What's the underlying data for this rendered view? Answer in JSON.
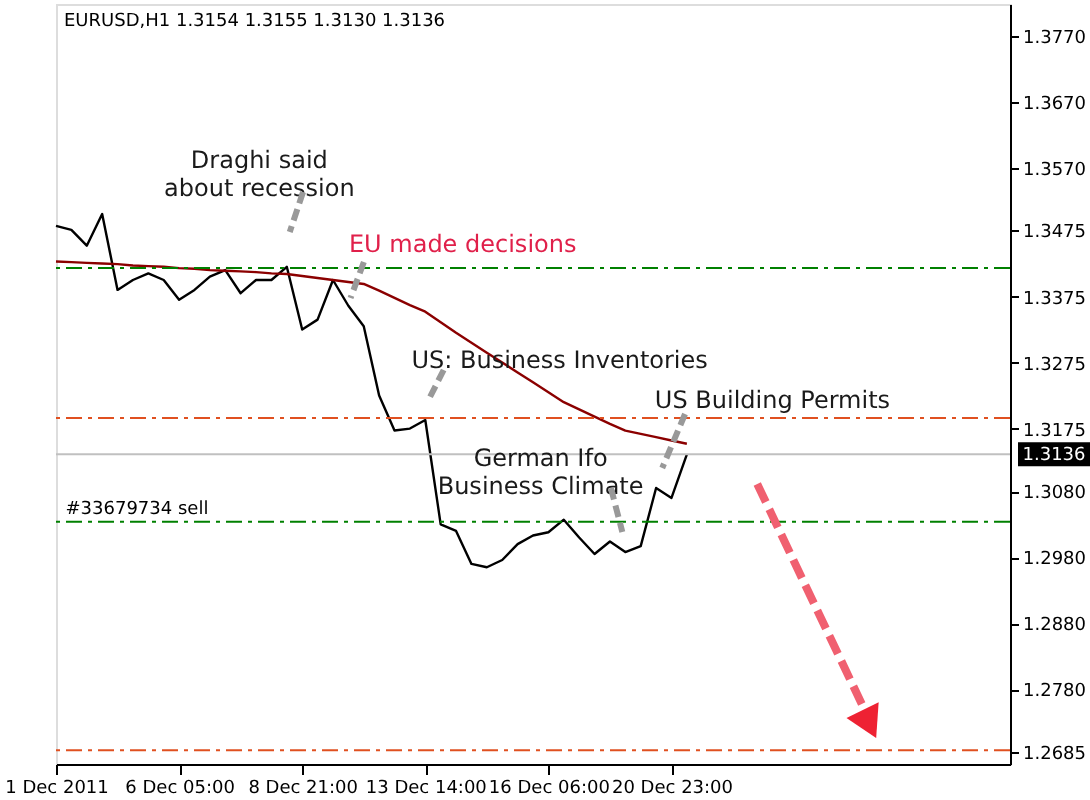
{
  "chart_data": {
    "type": "line",
    "title": "EURUSD,H1  1.3154 1.3155 1.3130 1.3136",
    "categories": [
      "1 Dec 2011",
      null,
      null,
      null,
      null,
      null,
      null,
      null,
      "6 Dec 05:00",
      null,
      null,
      null,
      null,
      null,
      null,
      null,
      "8 Dec 21:00",
      null,
      null,
      null,
      null,
      null,
      null,
      null,
      "13 Dec 14:00",
      null,
      null,
      null,
      null,
      null,
      null,
      null,
      "16 Dec 06:00",
      null,
      null,
      null,
      null,
      null,
      null,
      null,
      "20 Dec 23:00",
      null,
      null,
      null,
      null,
      null,
      null,
      null,
      null,
      null,
      null,
      null,
      null,
      null,
      null,
      null,
      null,
      null,
      null,
      null,
      null,
      null,
      null
    ],
    "ylim": [
      1.2667,
      1.3818
    ],
    "yticks": [
      {
        "value": 1.377,
        "label": "1.3770"
      },
      {
        "value": 1.367,
        "label": "1.3670"
      },
      {
        "value": 1.357,
        "label": "1.3570"
      },
      {
        "value": 1.3475,
        "label": "1.3475"
      },
      {
        "value": 1.3375,
        "label": "1.3375"
      },
      {
        "value": 1.3275,
        "label": "1.3275"
      },
      {
        "value": 1.3175,
        "label": "1.3175"
      },
      {
        "value": 1.308,
        "label": "1.3080"
      },
      {
        "value": 1.298,
        "label": "1.2980"
      },
      {
        "value": 1.288,
        "label": "1.2880"
      },
      {
        "value": 1.278,
        "label": "1.2780"
      },
      {
        "value": 1.2685,
        "label": "1.2685"
      }
    ],
    "grid": false,
    "line_style": "solid",
    "series": [
      {
        "color": "#000000",
        "values": [
          1.3482,
          1.3476,
          1.3452,
          1.35,
          1.3385,
          1.34,
          1.341,
          1.34,
          1.337,
          1.3385,
          1.3405,
          1.3415,
          1.338,
          1.34,
          1.34,
          1.342,
          1.3325,
          1.334,
          1.34,
          1.3361,
          1.333,
          1.3225,
          1.3172,
          1.3175,
          1.3188,
          1.303,
          1.302,
          1.297,
          1.2965,
          1.2976,
          1.3,
          1.3013,
          1.3018,
          1.3037,
          1.301,
          1.2985,
          1.3004,
          1.2988,
          1.2997,
          1.3085,
          1.307,
          1.3136,
          null,
          null,
          null,
          null,
          null,
          null,
          null,
          null,
          null,
          null,
          null,
          null,
          null,
          null,
          null,
          null,
          null,
          null,
          null,
          null,
          null
        ]
      },
      {
        "color": "#8b0000",
        "values": [
          1.3428,
          1.3427,
          1.3426,
          1.3425,
          1.3424,
          1.3422,
          1.3421,
          1.342,
          1.3418,
          1.3417,
          1.3415,
          1.3414,
          1.3413,
          1.3412,
          1.341,
          1.3409,
          1.3406,
          1.3403,
          1.34,
          1.3397,
          1.3394,
          1.3384,
          1.3373,
          1.3362,
          1.3352,
          1.3336,
          1.332,
          1.3305,
          1.329,
          1.3275,
          1.326,
          1.3245,
          1.323,
          1.3215,
          1.3204,
          1.3193,
          1.3182,
          1.3172,
          1.3167,
          1.3162,
          1.3157,
          1.3152,
          null,
          null,
          null,
          null,
          null,
          null,
          null,
          null,
          null,
          null,
          null,
          null,
          null,
          null,
          null,
          null,
          null,
          null,
          null,
          null,
          null
        ]
      }
    ],
    "ref_lines": [
      {
        "axis": "y",
        "value": 1.3418,
        "color": "#008000",
        "line_style": "dashed"
      },
      {
        "axis": "y",
        "value": 1.3191,
        "color": "#e05020",
        "line_style": "dashed"
      },
      {
        "axis": "y",
        "value": 1.3136,
        "color": "#c0c0c0",
        "line_style": "solid",
        "label": "1.3136"
      },
      {
        "axis": "y",
        "value": 1.3034,
        "color": "#008000",
        "line_style": "dashed",
        "label": "#33679734 sell"
      },
      {
        "axis": "y",
        "value": 1.2688,
        "color": "#e05020",
        "line_style": "dashed"
      }
    ],
    "annotations": [
      "Draghi said\nabout recession",
      "EU made decisions",
      "US: Business Inventories",
      "US Building Permits",
      "German Ifo\nBusiness Climate"
    ]
  }
}
